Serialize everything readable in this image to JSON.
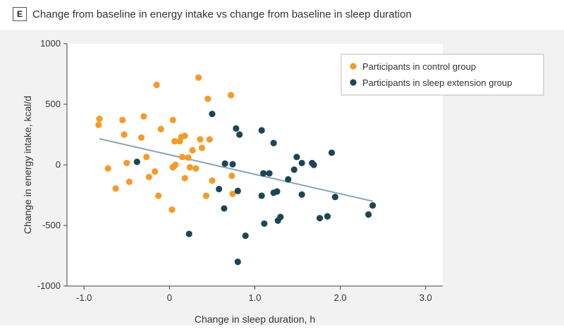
{
  "panel": {
    "letter": "E",
    "title": "Change from baseline in energy intake vs change from baseline in sleep duration"
  },
  "chart_data": {
    "type": "scatter",
    "xlabel": "Change in sleep duration, h",
    "ylabel": "Change in energy intake, kcal/d",
    "xlim": [
      -1.2,
      3.2
    ],
    "ylim": [
      -1000,
      1000
    ],
    "xticks": [
      -1.0,
      0,
      1.0,
      2.0,
      3.0
    ],
    "xtick_labels": [
      "-1.0",
      "0",
      "1.0",
      "2.0",
      "3.0"
    ],
    "yticks": [
      -1000,
      -500,
      0,
      500,
      1000
    ],
    "ytick_labels": [
      "-1000",
      "-500",
      "0",
      "500",
      "1000"
    ],
    "grid": false,
    "legend_position": "top-right",
    "series": [
      {
        "name": "Participants in control group",
        "color": "#f39c2b",
        "points": [
          [
            -0.82,
            380
          ],
          [
            -0.83,
            330
          ],
          [
            -0.72,
            -30
          ],
          [
            -0.63,
            -195
          ],
          [
            -0.55,
            370
          ],
          [
            -0.53,
            250
          ],
          [
            -0.5,
            15
          ],
          [
            -0.47,
            -140
          ],
          [
            -0.33,
            225
          ],
          [
            -0.3,
            400
          ],
          [
            -0.27,
            65
          ],
          [
            -0.24,
            -100
          ],
          [
            -0.17,
            -55
          ],
          [
            -0.15,
            660
          ],
          [
            -0.13,
            -255
          ],
          [
            -0.1,
            295
          ],
          [
            0.03,
            -370
          ],
          [
            0.04,
            370
          ],
          [
            0.04,
            -20
          ],
          [
            0.06,
            195
          ],
          [
            0.07,
            0
          ],
          [
            0.12,
            195
          ],
          [
            0.14,
            230
          ],
          [
            0.15,
            65
          ],
          [
            0.18,
            240
          ],
          [
            0.18,
            -110
          ],
          [
            0.22,
            60
          ],
          [
            0.24,
            -20
          ],
          [
            0.27,
            120
          ],
          [
            0.31,
            -30
          ],
          [
            0.34,
            720
          ],
          [
            0.36,
            210
          ],
          [
            0.38,
            140
          ],
          [
            0.43,
            -255
          ],
          [
            0.45,
            545
          ],
          [
            0.47,
            210
          ],
          [
            0.5,
            -130
          ],
          [
            0.72,
            575
          ],
          [
            0.73,
            -90
          ],
          [
            0.74,
            -240
          ]
        ]
      },
      {
        "name": "Participants in sleep extension group",
        "color": "#1e4555",
        "points": [
          [
            -0.38,
            25
          ],
          [
            0.23,
            -570
          ],
          [
            0.5,
            420
          ],
          [
            0.58,
            -200
          ],
          [
            0.64,
            -360
          ],
          [
            0.65,
            10
          ],
          [
            0.74,
            5
          ],
          [
            0.78,
            300
          ],
          [
            0.8,
            -800
          ],
          [
            0.8,
            -215
          ],
          [
            0.82,
            250
          ],
          [
            0.89,
            -585
          ],
          [
            1.08,
            285
          ],
          [
            1.08,
            -255
          ],
          [
            1.1,
            -70
          ],
          [
            1.11,
            -485
          ],
          [
            1.17,
            -70
          ],
          [
            1.22,
            180
          ],
          [
            1.22,
            -230
          ],
          [
            1.26,
            -220
          ],
          [
            1.27,
            -460
          ],
          [
            1.3,
            -430
          ],
          [
            1.39,
            -120
          ],
          [
            1.46,
            -40
          ],
          [
            1.49,
            65
          ],
          [
            1.55,
            15
          ],
          [
            1.55,
            -245
          ],
          [
            1.67,
            15
          ],
          [
            1.69,
            0
          ],
          [
            1.76,
            -440
          ],
          [
            1.85,
            -425
          ],
          [
            1.9,
            100
          ],
          [
            1.94,
            -265
          ],
          [
            2.33,
            -410
          ],
          [
            2.38,
            -335
          ]
        ]
      }
    ],
    "trend_line": {
      "x": [
        -0.82,
        2.38
      ],
      "y": [
        215,
        -300
      ],
      "color": "#8aa6b4"
    }
  }
}
